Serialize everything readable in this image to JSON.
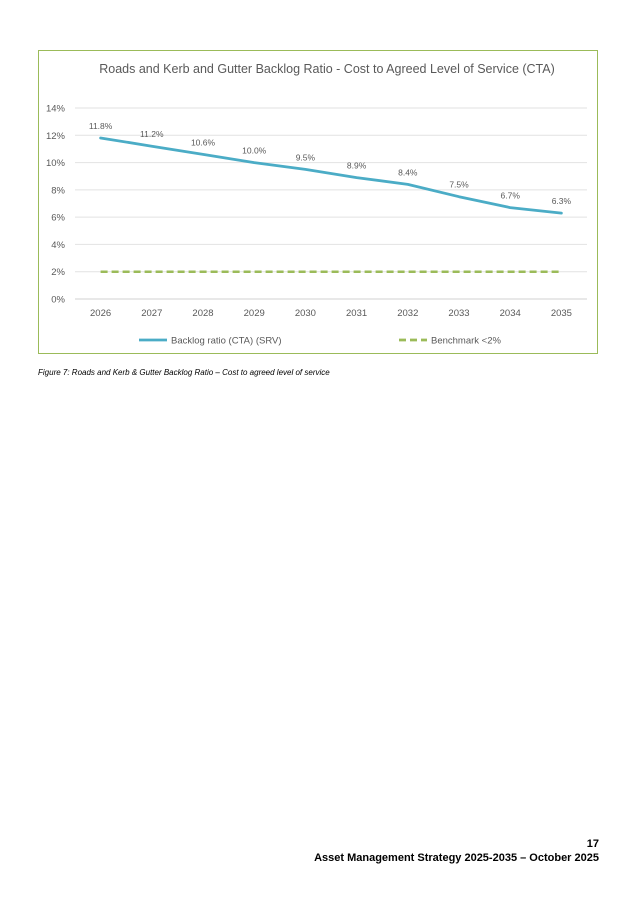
{
  "chart_data": {
    "type": "line",
    "title": "Roads and Kerb and Gutter  Backlog Ratio - Cost to Agreed Level of Service (CTA)",
    "categories": [
      "2026",
      "2027",
      "2028",
      "2029",
      "2030",
      "2031",
      "2032",
      "2033",
      "2034",
      "2035"
    ],
    "series": [
      {
        "name": "Backlog ratio (CTA) (SRV)",
        "values": [
          11.8,
          11.2,
          10.6,
          10.0,
          9.5,
          8.9,
          8.4,
          7.5,
          6.7,
          6.3
        ],
        "data_labels": [
          "11.8%",
          "11.2%",
          "10.6%",
          "10.0%",
          "9.5%",
          "8.9%",
          "8.4%",
          "7.5%",
          "6.7%",
          "6.3%"
        ],
        "color": "#4bacc6",
        "style": "solid"
      },
      {
        "name": "Benchmark <2%",
        "values": [
          2,
          2,
          2,
          2,
          2,
          2,
          2,
          2,
          2,
          2
        ],
        "color": "#9bbb59",
        "style": "dashed"
      }
    ],
    "yticks": [
      "0%",
      "2%",
      "4%",
      "6%",
      "8%",
      "10%",
      "12%",
      "14%"
    ],
    "ylim": [
      0,
      14
    ],
    "grid": true,
    "legend_position": "bottom",
    "border_color": "#9bbb59"
  },
  "caption": "Figure 7: Roads and Kerb & Gutter Backlog Ratio – Cost to agreed level of service",
  "footer": {
    "page_number": "17",
    "document_title": "Asset Management Strategy 2025-2035 – October 2025"
  }
}
